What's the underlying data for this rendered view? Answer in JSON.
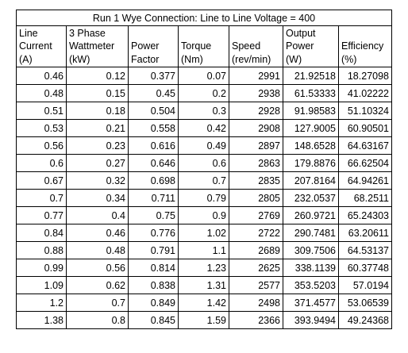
{
  "table": {
    "title": "Run 1 Wye Connection: Line to Line Voltage = 400",
    "headers": [
      [
        "Line",
        "Current",
        "(A)"
      ],
      [
        "3 Phase",
        "Wattmeter",
        "(kW)"
      ],
      [
        "",
        "Power",
        "Factor"
      ],
      [
        "",
        "Torque",
        "(Nm)"
      ],
      [
        "",
        "Speed",
        "(rev/min)"
      ],
      [
        "Output",
        "Power",
        "(W)"
      ],
      [
        "",
        "Efficiency",
        "(%)"
      ]
    ],
    "rows": [
      [
        "0.46",
        "0.12",
        "0.377",
        "0.07",
        "2991",
        "21.92518",
        "18.27098"
      ],
      [
        "0.48",
        "0.15",
        "0.45",
        "0.2",
        "2938",
        "61.53333",
        "41.02222"
      ],
      [
        "0.51",
        "0.18",
        "0.504",
        "0.3",
        "2928",
        "91.98583",
        "51.10324"
      ],
      [
        "0.53",
        "0.21",
        "0.558",
        "0.42",
        "2908",
        "127.9005",
        "60.90501"
      ],
      [
        "0.56",
        "0.23",
        "0.616",
        "0.49",
        "2897",
        "148.6528",
        "64.63167"
      ],
      [
        "0.6",
        "0.27",
        "0.646",
        "0.6",
        "2863",
        "179.8876",
        "66.62504"
      ],
      [
        "0.67",
        "0.32",
        "0.698",
        "0.7",
        "2835",
        "207.8164",
        "64.94261"
      ],
      [
        "0.7",
        "0.34",
        "0.711",
        "0.79",
        "2805",
        "232.0537",
        "68.2511"
      ],
      [
        "0.77",
        "0.4",
        "0.75",
        "0.9",
        "2769",
        "260.9721",
        "65.24303"
      ],
      [
        "0.84",
        "0.46",
        "0.776",
        "1.02",
        "2722",
        "290.7481",
        "63.20611"
      ],
      [
        "0.88",
        "0.48",
        "0.791",
        "1.1",
        "2689",
        "309.7506",
        "64.53137"
      ],
      [
        "0.99",
        "0.56",
        "0.814",
        "1.23",
        "2625",
        "338.1139",
        "60.37748"
      ],
      [
        "1.09",
        "0.62",
        "0.838",
        "1.31",
        "2577",
        "353.5203",
        "57.0194"
      ],
      [
        "1.2",
        "0.7",
        "0.849",
        "1.42",
        "2498",
        "371.4577",
        "53.06539"
      ],
      [
        "1.38",
        "0.8",
        "0.845",
        "1.59",
        "2366",
        "393.9494",
        "49.24368"
      ]
    ]
  }
}
